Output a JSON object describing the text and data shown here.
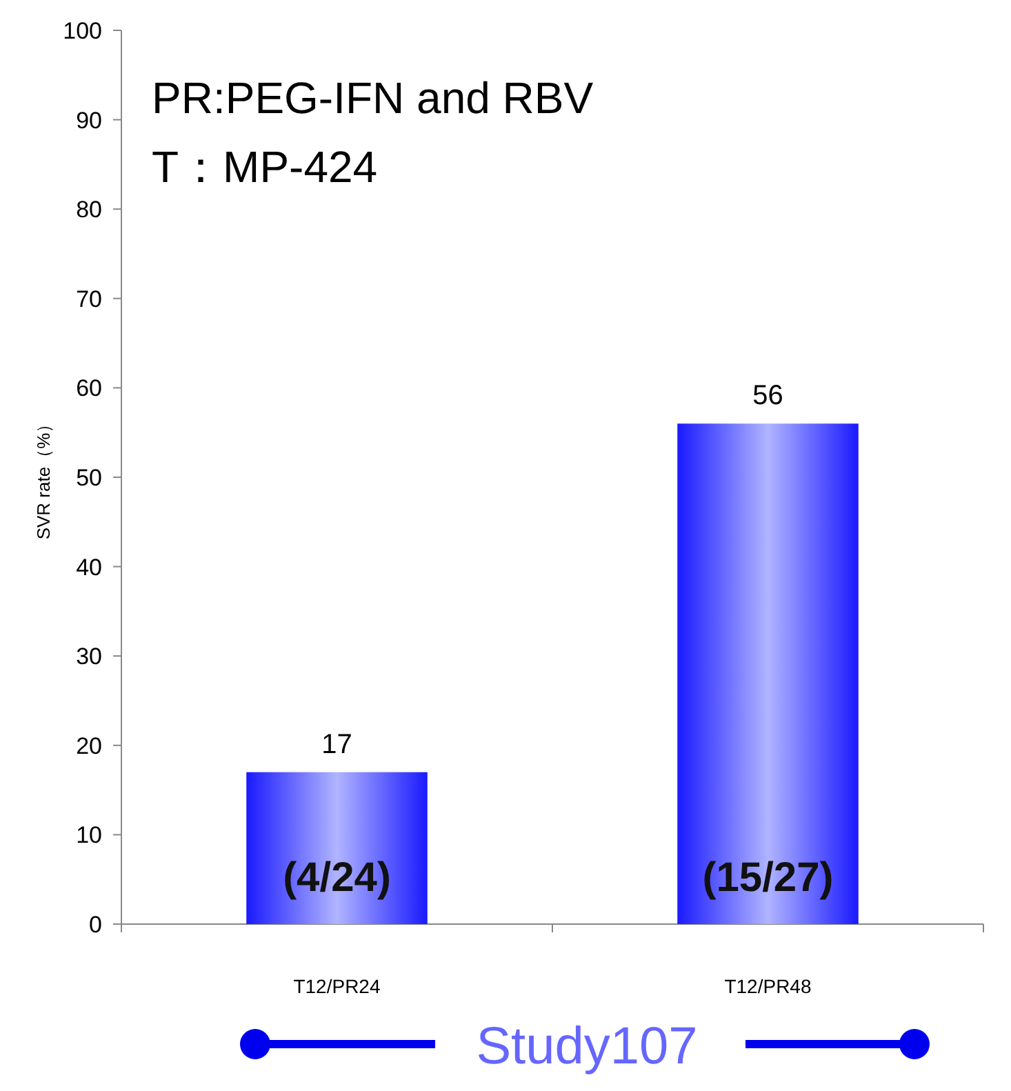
{
  "chart_data": {
    "type": "bar",
    "title": "PR:PEG-IFN and RBV",
    "subtitle": "T：MP-424",
    "ylabel": "SVR rate（%）",
    "categories": [
      "T12/PR24",
      "T12/PR48"
    ],
    "values": [
      17,
      56
    ],
    "color": "#1a1aff",
    "ylim": [
      0,
      100
    ],
    "yticks": [
      0,
      10,
      20,
      30,
      40,
      50,
      60,
      70,
      80,
      90,
      100
    ],
    "data_labels": true,
    "grid": false,
    "annotations": [
      "(4/24)",
      "(15/27)",
      "Study107"
    ]
  }
}
